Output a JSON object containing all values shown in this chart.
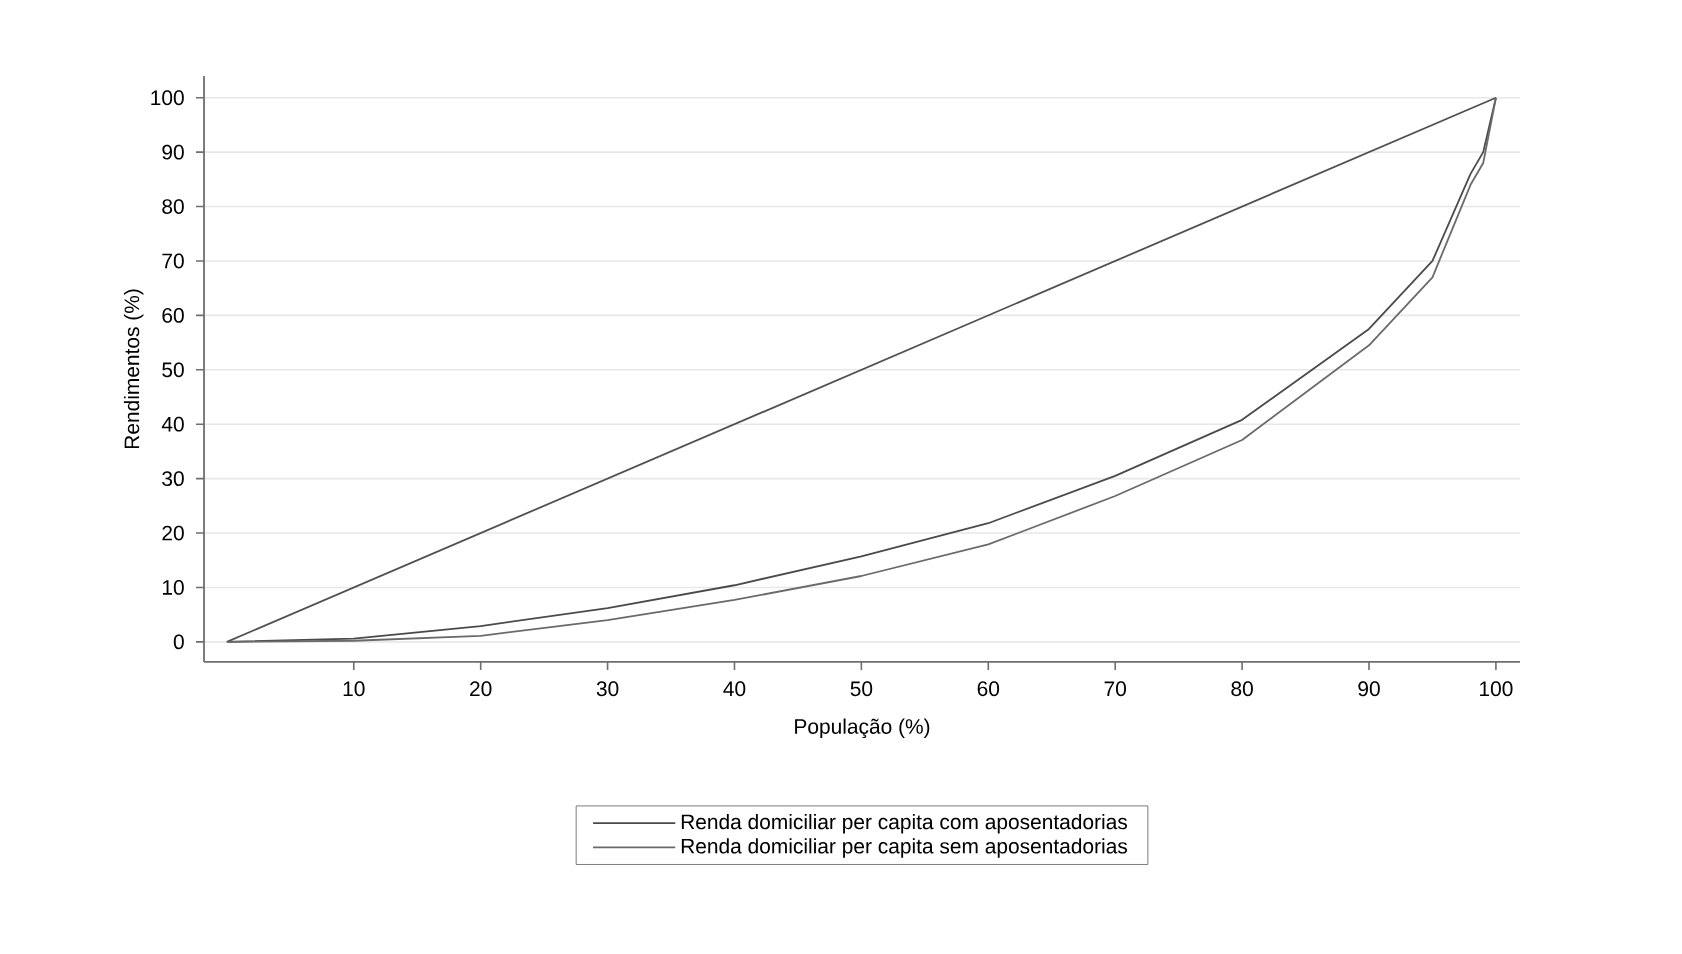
{
  "chart_data": {
    "type": "line",
    "xlabel": "População (%)",
    "ylabel": "Rendimentos (%)",
    "xlim": [
      -1.8,
      101.9
    ],
    "ylim": [
      -3.7,
      104
    ],
    "xticks": [
      10,
      20,
      30,
      40,
      50,
      60,
      70,
      80,
      90,
      100
    ],
    "yticks": [
      0,
      10,
      20,
      30,
      40,
      50,
      60,
      70,
      80,
      90,
      100
    ],
    "grid": "y",
    "legend": "bottom",
    "marker": "none",
    "line_style": "solid",
    "series": [
      {
        "color": "#505050",
        "x": [
          0,
          100
        ],
        "values": [
          0,
          100
        ]
      },
      {
        "name": "Renda domiciliar per capita com aposentadorias",
        "color": "#4a4a4a",
        "x": [
          0,
          10,
          20,
          30,
          40,
          50,
          60,
          70,
          80,
          90,
          95,
          98,
          99,
          100
        ],
        "values": [
          0,
          0.6,
          2.9,
          6.2,
          10.4,
          15.7,
          21.8,
          30.5,
          40.8,
          57.5,
          70,
          86,
          90,
          100
        ]
      },
      {
        "name": "Renda domiciliar per capita sem aposentadorias",
        "color": "#6a6a6a",
        "x": [
          0,
          10,
          20,
          30,
          40,
          50,
          60,
          70,
          80,
          90,
          95,
          98,
          99,
          100
        ],
        "values": [
          0,
          0.2,
          1.1,
          4,
          7.7,
          12.1,
          17.9,
          26.8,
          37.1,
          54.5,
          67,
          84,
          88,
          100
        ]
      }
    ]
  }
}
